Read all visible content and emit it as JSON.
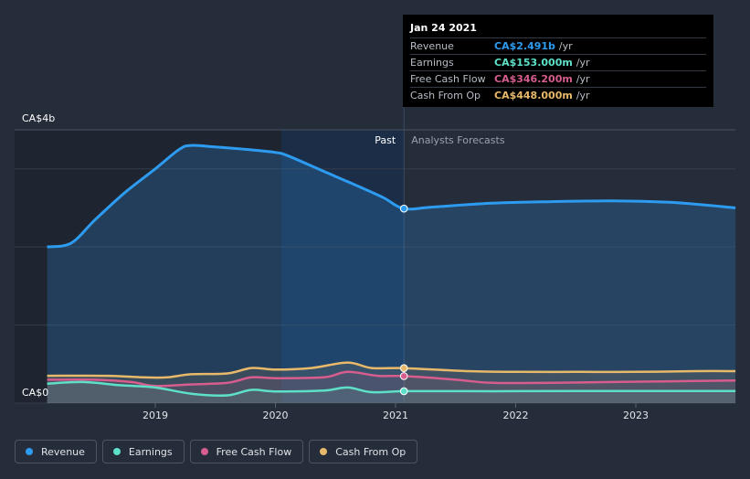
{
  "chart_data": {
    "type": "area",
    "ylabel_top": "CA$4b",
    "ylabel_bottom": "CA$0",
    "ylim": [
      0,
      3.5
    ],
    "xlim": [
      2018.1,
      2023.83
    ],
    "xticks": [
      2019,
      2020,
      2021,
      2022,
      2023
    ],
    "xtick_labels": [
      "2019",
      "2020",
      "2021",
      "2022",
      "2023"
    ],
    "past_label": "Past",
    "forecast_label": "Analysts Forecasts",
    "divider_x": 2021.07,
    "highlight_start_x": 2020.05,
    "series": [
      {
        "name": "Revenue",
        "color": "#2d9bf0",
        "x": [
          2018.1,
          2018.3,
          2018.5,
          2018.75,
          2019.0,
          2019.2,
          2019.3,
          2019.5,
          2019.75,
          2020.0,
          2020.1,
          2020.4,
          2020.7,
          2020.9,
          2021.07,
          2021.3,
          2021.8,
          2022.3,
          2022.8,
          2023.3,
          2023.83
        ],
        "values": [
          2.0,
          2.05,
          2.35,
          2.7,
          3.0,
          3.25,
          3.3,
          3.28,
          3.25,
          3.21,
          3.17,
          2.97,
          2.77,
          2.63,
          2.491,
          2.51,
          2.56,
          2.58,
          2.59,
          2.57,
          2.5
        ]
      },
      {
        "name": "Earnings",
        "color": "#5ee0c8",
        "x": [
          2018.1,
          2018.4,
          2018.7,
          2019.0,
          2019.3,
          2019.6,
          2019.8,
          2020.0,
          2020.4,
          2020.6,
          2020.8,
          2021.07,
          2021.5,
          2022.0,
          2022.5,
          2023.0,
          2023.83
        ],
        "values": [
          0.25,
          0.27,
          0.23,
          0.2,
          0.12,
          0.1,
          0.17,
          0.15,
          0.16,
          0.2,
          0.14,
          0.153,
          0.153,
          0.153,
          0.155,
          0.155,
          0.155
        ]
      },
      {
        "name": "Free Cash Flow",
        "color": "#d65d8e",
        "x": [
          2018.1,
          2018.5,
          2018.8,
          2019.0,
          2019.3,
          2019.6,
          2019.8,
          2020.0,
          2020.4,
          2020.6,
          2020.85,
          2021.07,
          2021.5,
          2021.8,
          2022.3,
          2022.8,
          2023.3,
          2023.83
        ],
        "values": [
          0.3,
          0.3,
          0.27,
          0.22,
          0.24,
          0.26,
          0.33,
          0.32,
          0.33,
          0.4,
          0.35,
          0.346,
          0.3,
          0.26,
          0.26,
          0.27,
          0.28,
          0.29
        ]
      },
      {
        "name": "Cash From Op",
        "color": "#e8b96a",
        "x": [
          2018.1,
          2018.6,
          2018.9,
          2019.1,
          2019.3,
          2019.6,
          2019.8,
          2020.0,
          2020.3,
          2020.6,
          2020.8,
          2021.07,
          2021.6,
          2022.0,
          2022.5,
          2023.0,
          2023.5,
          2023.83
        ],
        "values": [
          0.35,
          0.35,
          0.33,
          0.33,
          0.37,
          0.38,
          0.45,
          0.43,
          0.45,
          0.52,
          0.45,
          0.448,
          0.41,
          0.4,
          0.4,
          0.4,
          0.41,
          0.41
        ]
      }
    ],
    "tooltip": {
      "date": "Jan 24 2021",
      "rows": [
        {
          "label": "Revenue",
          "value": "CA$2.491b",
          "unit": "/yr",
          "color": "#2d9bf0"
        },
        {
          "label": "Earnings",
          "value": "CA$153.000m",
          "unit": "/yr",
          "color": "#5ee0c8"
        },
        {
          "label": "Free Cash Flow",
          "value": "CA$346.200m",
          "unit": "/yr",
          "color": "#d65d8e"
        },
        {
          "label": "Cash From Op",
          "value": "CA$448.000m",
          "unit": "/yr",
          "color": "#e8b96a"
        }
      ]
    }
  },
  "legend": [
    {
      "label": "Revenue",
      "color": "#2d9bf0"
    },
    {
      "label": "Earnings",
      "color": "#5ee0c8"
    },
    {
      "label": "Free Cash Flow",
      "color": "#d65d8e"
    },
    {
      "label": "Cash From Op",
      "color": "#e8b96a"
    }
  ]
}
